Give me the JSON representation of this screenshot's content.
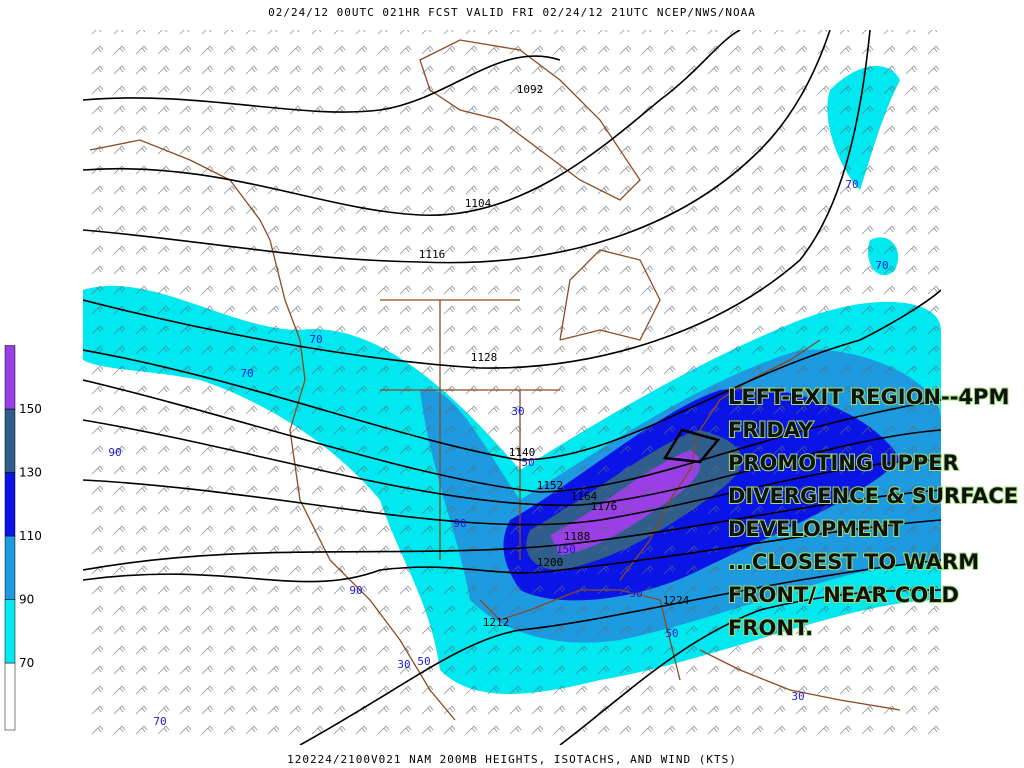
{
  "header": {
    "title": "02/24/12 00UTC  021HR  FCST VALID FRI 02/24/12 21UTC  NCEP/NWS/NOAA"
  },
  "footer": {
    "caption": "120224/2100V021 NAM 200MB HEIGHTS, ISOTACHS, AND WIND (KTS)"
  },
  "legend": {
    "levels": [
      70,
      90,
      110,
      130,
      150
    ],
    "colors": [
      "#00e8f0",
      "#1e9be0",
      "#0a14e6",
      "#2f5d8c",
      "#9a3ee6"
    ]
  },
  "contour_labels": [
    "1092",
    "1104",
    "1116",
    "1128",
    "1140",
    "1152",
    "1164",
    "1176",
    "1188",
    "1200",
    "1212",
    "1224"
  ],
  "isotach_labels": [
    "70",
    "70",
    "70",
    "70",
    "90",
    "30",
    "50",
    "90",
    "150",
    "90",
    "90",
    "50",
    "30",
    "50",
    "30",
    "70"
  ],
  "annotation": {
    "lines": [
      "LEFT-EXIT REGION--4PM",
      "FRIDAY",
      "PROMOTING UPPER",
      "DIVERGENCE & SURFACE",
      "DEVELOPMENT",
      "...CLOSEST TO WARM",
      "FRONT/ NEAR COLD",
      "FRONT."
    ]
  }
}
